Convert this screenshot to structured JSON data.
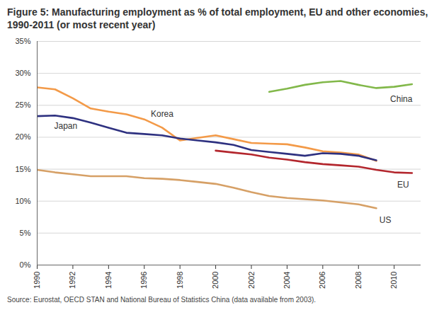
{
  "chart_data": {
    "type": "line",
    "title": "Figure 5: Manufacturing employment as % of total employment, EU and other economies, 1990-2011 (or most recent year)",
    "caption": "Source: Eurostat, OECD STAN and National Bureau of Statistics China (data available from 2003).",
    "x": [
      1990,
      1991,
      1992,
      1993,
      1994,
      1995,
      1996,
      1997,
      1998,
      1999,
      2000,
      2001,
      2002,
      2003,
      2004,
      2005,
      2006,
      2007,
      2008,
      2009,
      2010,
      2011
    ],
    "series": [
      {
        "name": "Korea",
        "color": "#f39a48",
        "values": [
          27.8,
          27.5,
          26.1,
          24.5,
          24.0,
          23.6,
          22.8,
          21.5,
          19.5,
          19.9,
          20.3,
          19.7,
          19.1,
          19.0,
          18.9,
          18.4,
          17.8,
          17.6,
          17.3,
          16.3,
          null,
          null
        ]
      },
      {
        "name": "Japan",
        "color": "#2e3180",
        "values": [
          23.3,
          23.4,
          23.0,
          22.3,
          21.5,
          20.7,
          20.5,
          20.3,
          19.8,
          19.5,
          19.2,
          18.8,
          18.0,
          17.7,
          17.4,
          17.1,
          17.5,
          17.4,
          17.1,
          16.4,
          null,
          null
        ]
      },
      {
        "name": "China",
        "color": "#82b84a",
        "values": [
          null,
          null,
          null,
          null,
          null,
          null,
          null,
          null,
          null,
          null,
          null,
          null,
          null,
          27.1,
          27.6,
          28.2,
          28.6,
          28.8,
          28.2,
          27.7,
          27.9,
          28.3
        ]
      },
      {
        "name": "EU",
        "color": "#b3262d",
        "values": [
          null,
          null,
          null,
          null,
          null,
          null,
          null,
          null,
          null,
          null,
          17.9,
          17.6,
          17.3,
          16.8,
          16.5,
          16.1,
          15.8,
          15.6,
          15.4,
          14.9,
          14.5,
          14.4
        ]
      },
      {
        "name": "US",
        "color": "#d6a066",
        "values": [
          14.9,
          14.5,
          14.2,
          13.9,
          13.9,
          13.9,
          13.6,
          13.5,
          13.3,
          13.0,
          12.7,
          12.1,
          11.4,
          10.8,
          10.5,
          10.3,
          10.1,
          9.8,
          9.5,
          8.9,
          null,
          null
        ]
      }
    ],
    "xlim": [
      1990,
      2011.5
    ],
    "xticks": [
      1990,
      1992,
      1994,
      1996,
      1998,
      2000,
      2002,
      2004,
      2006,
      2008,
      2010
    ],
    "ylim": [
      0,
      35
    ],
    "yticks": [
      {
        "value": 0,
        "label": "0%"
      },
      {
        "value": 5,
        "label": "5%"
      },
      {
        "value": 10,
        "label": "10%"
      },
      {
        "value": 15,
        "label": "15%"
      },
      {
        "value": 20,
        "label": "20%"
      },
      {
        "value": 25,
        "label": "25%"
      },
      {
        "value": 30,
        "label": "30%"
      },
      {
        "value": 35,
        "label": "35%"
      }
    ],
    "grid": true
  }
}
